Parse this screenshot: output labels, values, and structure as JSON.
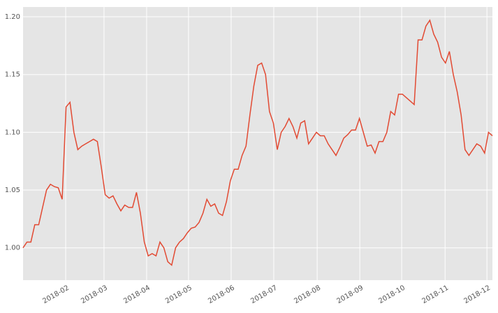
{
  "chart_data": {
    "type": "line",
    "color": "#e24a33",
    "grid": true,
    "values": [
      1.0,
      1.005,
      1.005,
      1.02,
      1.02,
      1.035,
      1.05,
      1.055,
      1.053,
      1.052,
      1.042,
      1.122,
      1.126,
      1.1,
      1.085,
      1.088,
      1.09,
      1.092,
      1.094,
      1.092,
      1.07,
      1.046,
      1.043,
      1.045,
      1.038,
      1.032,
      1.037,
      1.035,
      1.035,
      1.048,
      1.03,
      1.005,
      0.993,
      0.995,
      0.993,
      1.005,
      1.0,
      0.988,
      0.985,
      1.0,
      1.005,
      1.008,
      1.013,
      1.017,
      1.018,
      1.022,
      1.03,
      1.042,
      1.036,
      1.038,
      1.03,
      1.028,
      1.04,
      1.058,
      1.068,
      1.068,
      1.08,
      1.088,
      1.115,
      1.14,
      1.158,
      1.16,
      1.15,
      1.118,
      1.108,
      1.085,
      1.1,
      1.105,
      1.112,
      1.105,
      1.095,
      1.108,
      1.11,
      1.09,
      1.095,
      1.1,
      1.097,
      1.097,
      1.09,
      1.085,
      1.08,
      1.087,
      1.095,
      1.098,
      1.102,
      1.102,
      1.112,
      1.1,
      1.088,
      1.089,
      1.082,
      1.092,
      1.092,
      1.1,
      1.118,
      1.115,
      1.133,
      1.133,
      1.13,
      1.127,
      1.124,
      1.18,
      1.18,
      1.192,
      1.197,
      1.185,
      1.178,
      1.165,
      1.16,
      1.17,
      1.15,
      1.135,
      1.115,
      1.085,
      1.08,
      1.085,
      1.09,
      1.088,
      1.082,
      1.1,
      1.097
    ],
    "xlim": [
      0,
      120
    ],
    "xticks": [
      {
        "value": 10.9,
        "label": "2018-02"
      },
      {
        "value": 20.7,
        "label": "2018-03"
      },
      {
        "value": 31.6,
        "label": "2018-04"
      },
      {
        "value": 42.3,
        "label": "2018-05"
      },
      {
        "value": 53.2,
        "label": "2018-06"
      },
      {
        "value": 64.1,
        "label": "2018-07"
      },
      {
        "value": 75.2,
        "label": "2018-08"
      },
      {
        "value": 86.1,
        "label": "2018-09"
      },
      {
        "value": 96.8,
        "label": "2018-10"
      },
      {
        "value": 107.9,
        "label": "2018-11"
      },
      {
        "value": 118.6,
        "label": "2018-12"
      }
    ],
    "ylim": [
      0.972,
      1.2085
    ],
    "yticks": [
      {
        "value": 1.0,
        "label": "1.00"
      },
      {
        "value": 1.05,
        "label": "1.05"
      },
      {
        "value": 1.1,
        "label": "1.10"
      },
      {
        "value": 1.15,
        "label": "1.15"
      },
      {
        "value": 1.2,
        "label": "1.20"
      }
    ]
  }
}
